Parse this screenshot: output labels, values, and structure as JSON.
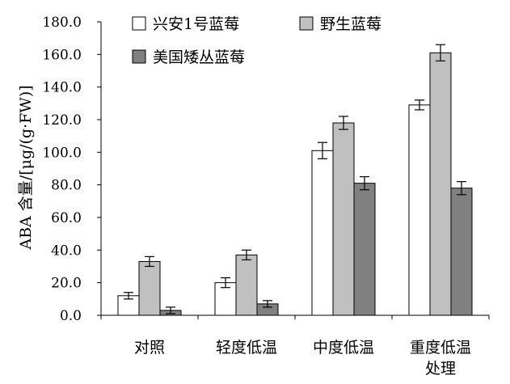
{
  "chart_data": {
    "type": "bar",
    "ylabel": "ABA 含量/[μg/(g·FW)]",
    "xlabel": "",
    "ylim": [
      0,
      180
    ],
    "yticks": [
      "0.0",
      "20.0",
      "40.0",
      "60.0",
      "80.0",
      "100.0",
      "120.0",
      "140.0",
      "160.0",
      "180.0"
    ],
    "categories": [
      "对照",
      "轻度低温",
      "中度低温",
      "重度低温处理"
    ],
    "category_lines": [
      [
        "对照"
      ],
      [
        "轻度低温"
      ],
      [
        "中度低温"
      ],
      [
        "重度低温",
        "处理"
      ]
    ],
    "series": [
      {
        "name": "兴安1号蓝莓",
        "color": "#ffffff",
        "values": [
          12,
          20,
          101,
          129
        ],
        "errors": [
          2,
          3,
          5,
          3
        ]
      },
      {
        "name": "野生蓝莓",
        "color": "#c0c0c0",
        "values": [
          33,
          37,
          118,
          161
        ],
        "errors": [
          3,
          3,
          4,
          5
        ]
      },
      {
        "name": "美国矮丛蓝莓",
        "color": "#808080",
        "values": [
          3,
          7,
          81,
          78
        ],
        "errors": [
          2,
          2,
          4,
          4
        ]
      }
    ],
    "grid": false,
    "legend_position": "top-left"
  }
}
